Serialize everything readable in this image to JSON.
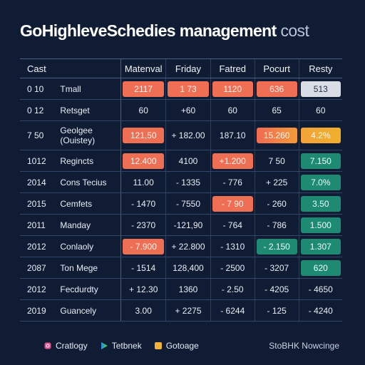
{
  "title": {
    "main": "GoHighleveSchedies management",
    "suffix": "cost"
  },
  "table": {
    "headers": [
      "Cast",
      "Matenval",
      "Friday",
      "Fatred",
      "Pocurt",
      "Resty"
    ],
    "rows": [
      {
        "code": "0 10",
        "item": "Tmall",
        "cells": [
          "2117",
          "1 73",
          "1120",
          "636",
          "513"
        ],
        "styles": [
          "red",
          "red",
          "red",
          "red",
          "gray"
        ]
      },
      {
        "code": "0 12",
        "item": "Retsget",
        "cells": [
          "60",
          "+60",
          "60",
          "65",
          "60"
        ],
        "styles": [
          "",
          "",
          "",
          "",
          ""
        ]
      },
      {
        "code": "7 50",
        "item": "Geolgee (Ouistey)",
        "cells": [
          "121,50",
          "+ 182.00",
          "187.10",
          "15.260",
          "4.2%"
        ],
        "styles": [
          "red",
          "",
          "",
          "redorange",
          "orange"
        ]
      },
      {
        "code": "1012",
        "item": "Regincts",
        "cells": [
          "12.400",
          "4100",
          "+1.200",
          "7 50",
          "7.150"
        ],
        "styles": [
          "red",
          "",
          "red",
          "",
          "teal"
        ]
      },
      {
        "code": "2014",
        "item": "Cons Tecius",
        "cells": [
          "11.00",
          "- 1335",
          "- 776",
          "+ 225",
          "7.0%"
        ],
        "styles": [
          "",
          "",
          "",
          "",
          "teal"
        ]
      },
      {
        "code": "2015",
        "item": "Cemfets",
        "cells": [
          "- 1470",
          "- 7550",
          "- 7 90",
          "- 260",
          "3.50"
        ],
        "styles": [
          "",
          "",
          "red",
          "",
          "teal"
        ]
      },
      {
        "code": "2011",
        "item": "Manday",
        "cells": [
          "- 2370",
          "-121,90",
          "- 764",
          "- 786",
          "1.500"
        ],
        "styles": [
          "",
          "",
          "",
          "",
          "teal"
        ]
      },
      {
        "code": "2012",
        "item": "Conlaoly",
        "cells": [
          "- 7.900",
          "+ 22.800",
          "- 1310",
          "- 2.150",
          "1.307"
        ],
        "styles": [
          "red",
          "",
          "",
          "teal",
          "teal"
        ]
      },
      {
        "code": "2087",
        "item": "Ton Mege",
        "cells": [
          "- 1514",
          "128,400",
          "- 2500",
          "- 3207",
          "620"
        ],
        "styles": [
          "",
          "",
          "",
          "",
          "teal"
        ]
      },
      {
        "code": "2012",
        "item": "Fecdurdty",
        "cells": [
          "+ 12.30",
          "1360",
          "- 2.50",
          "- 4205",
          "- 4650"
        ],
        "styles": [
          "",
          "",
          "",
          "",
          ""
        ]
      },
      {
        "code": "2019",
        "item": "Guancely",
        "cells": [
          "3.00",
          "+ 2275",
          "- 6244",
          "- 125",
          "- 4240"
        ],
        "styles": [
          "",
          "",
          "",
          "",
          ""
        ]
      }
    ]
  },
  "footer": {
    "items": [
      {
        "label": "Cratlogy",
        "icon": "instagram-icon",
        "color": "#e2528d"
      },
      {
        "label": "Tetbnek",
        "icon": "play-icon",
        "color": "#3bc06b"
      },
      {
        "label": "Gotoage",
        "icon": "square-icon",
        "color": "#f2b23a"
      }
    ],
    "right_text": "StoBHK Nowcinge"
  }
}
